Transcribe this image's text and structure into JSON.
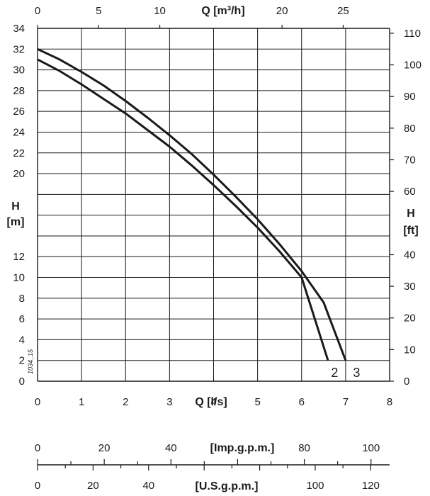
{
  "chart_data": {
    "type": "line",
    "x": [
      0,
      0.5,
      1,
      1.5,
      2,
      2.5,
      3,
      3.5,
      4,
      4.5,
      5,
      5.5,
      6,
      6.5,
      7
    ],
    "series": [
      {
        "name": "2",
        "x": [
          0,
          0.5,
          1,
          1.5,
          2,
          2.5,
          3,
          3.5,
          4,
          4.5,
          5,
          5.5,
          6,
          6.6
        ],
        "values": [
          31,
          29.9,
          28.6,
          27.2,
          25.8,
          24.2,
          22.6,
          20.8,
          18.9,
          16.9,
          14.8,
          12.5,
          10.0,
          2.0
        ]
      },
      {
        "name": "3",
        "x": [
          0,
          0.5,
          1,
          1.5,
          2,
          2.5,
          3,
          3.5,
          4,
          4.5,
          5,
          5.5,
          6,
          6.5,
          7.0
        ],
        "values": [
          32,
          31.0,
          29.8,
          28.5,
          27.0,
          25.4,
          23.7,
          21.9,
          19.9,
          17.8,
          15.6,
          13.2,
          10.6,
          7.6,
          2.0
        ]
      }
    ],
    "xlabel": "Q [l/s]",
    "ylabel_left": "H [m]",
    "ylabel_right": "H [ft]",
    "xlim": [
      0,
      8
    ],
    "ylim": [
      0,
      34
    ],
    "x_ticks": [
      "0",
      "1",
      "2",
      "3",
      "4",
      "5",
      "6",
      "7",
      "8"
    ],
    "y_ticks_left": [
      "0",
      "2",
      "4",
      "6",
      "8",
      "10",
      "12",
      "20",
      "22",
      "24",
      "26",
      "28",
      "30",
      "32",
      "34"
    ],
    "y_ticks_left_values": [
      0,
      2,
      4,
      6,
      8,
      10,
      12,
      20,
      22,
      24,
      26,
      28,
      30,
      32,
      34
    ],
    "top_axis": {
      "label": "Q [m³/h]",
      "ticks": [
        "0",
        "5",
        "10",
        "20",
        "25"
      ],
      "tick_values": [
        0,
        5,
        10,
        20,
        25
      ]
    },
    "right_axis": {
      "ticks": [
        "0",
        "10",
        "20",
        "30",
        "40",
        "60",
        "70",
        "80",
        "90",
        "100",
        "110"
      ],
      "tick_values": [
        0,
        10,
        20,
        30,
        40,
        60,
        70,
        80,
        90,
        100,
        110
      ]
    },
    "imp_gpm_axis": {
      "label": "[Imp.g.p.m.]",
      "ticks": [
        "0",
        "20",
        "40",
        "80",
        "100"
      ],
      "tick_values": [
        0,
        20,
        40,
        80,
        100
      ]
    },
    "us_gpm_axis": {
      "label": "[U.S.g.p.m.]",
      "ticks": [
        "0",
        "20",
        "40",
        "100",
        "120"
      ],
      "tick_values": [
        0,
        20,
        40,
        100,
        120
      ]
    },
    "curve_labels": [
      "2",
      "3"
    ],
    "side_code": "1034_15",
    "grid": true
  },
  "colors": {
    "line": "#1a1a1a",
    "grid": "#1a1a1a",
    "background": "#ffffff"
  }
}
